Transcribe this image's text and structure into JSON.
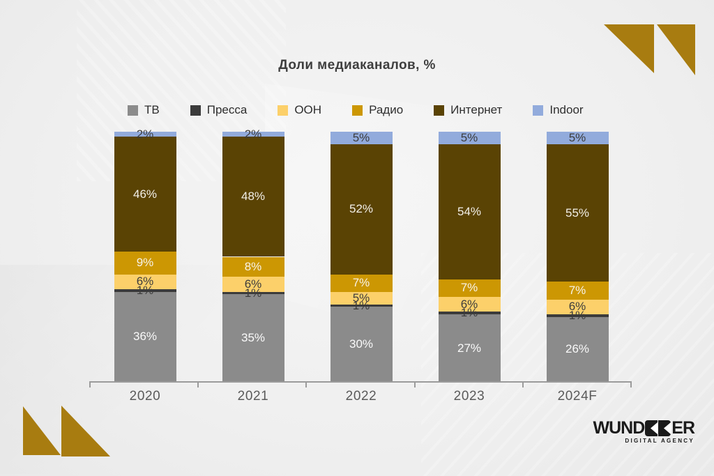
{
  "title": "Доли медиаканалов, %",
  "chart_data": {
    "type": "bar",
    "stacked": true,
    "title": "Доли медиаканалов, %",
    "categories": [
      "2020",
      "2021",
      "2022",
      "2023",
      "2024F"
    ],
    "value_suffix": "%",
    "ylim": [
      0,
      100
    ],
    "grid": false,
    "legend_position": "top",
    "note": "series listed bottom-to-top of stack; legend shown in same order",
    "series": [
      {
        "key": "tv",
        "name": "ТВ",
        "color": "#8b8b8b",
        "label_color": "#fafafa",
        "values": [
          36,
          35,
          30,
          27,
          26
        ]
      },
      {
        "key": "pressa",
        "name": "Пресса",
        "color": "#3b3b3b",
        "label_color": "#3d3d3d",
        "values": [
          1,
          1,
          1,
          1,
          1
        ]
      },
      {
        "key": "ooh",
        "name": "OOH",
        "color": "#fcd06a",
        "label_color": "#3d3d3d",
        "values": [
          6,
          6,
          5,
          6,
          6
        ]
      },
      {
        "key": "radio",
        "name": "Радио",
        "color": "#cc9703",
        "label_color": "#f7f3ea",
        "values": [
          9,
          8,
          7,
          7,
          7
        ]
      },
      {
        "key": "internet",
        "name": "Интернет",
        "color": "#5a4304",
        "label_color": "#f2efe8",
        "values": [
          46,
          48,
          52,
          54,
          55
        ]
      },
      {
        "key": "indoor",
        "name": "Indoor",
        "color": "#92abdc",
        "label_color": "#3d3d3d",
        "values": [
          2,
          2,
          5,
          5,
          5
        ]
      }
    ]
  },
  "logo": {
    "wordmark_left": "WUND",
    "wordmark_right": "ER",
    "subtitle": "DIGITAL AGENCY"
  },
  "colors": {
    "accent_gold": "#a87c10",
    "axis": "#9b9b9b",
    "title_text": "#3e3e3e",
    "year_text": "#5a5a5a",
    "legend_text": "#2e2e2e",
    "background": "#efefef",
    "logo_black": "#1b1b1b"
  }
}
